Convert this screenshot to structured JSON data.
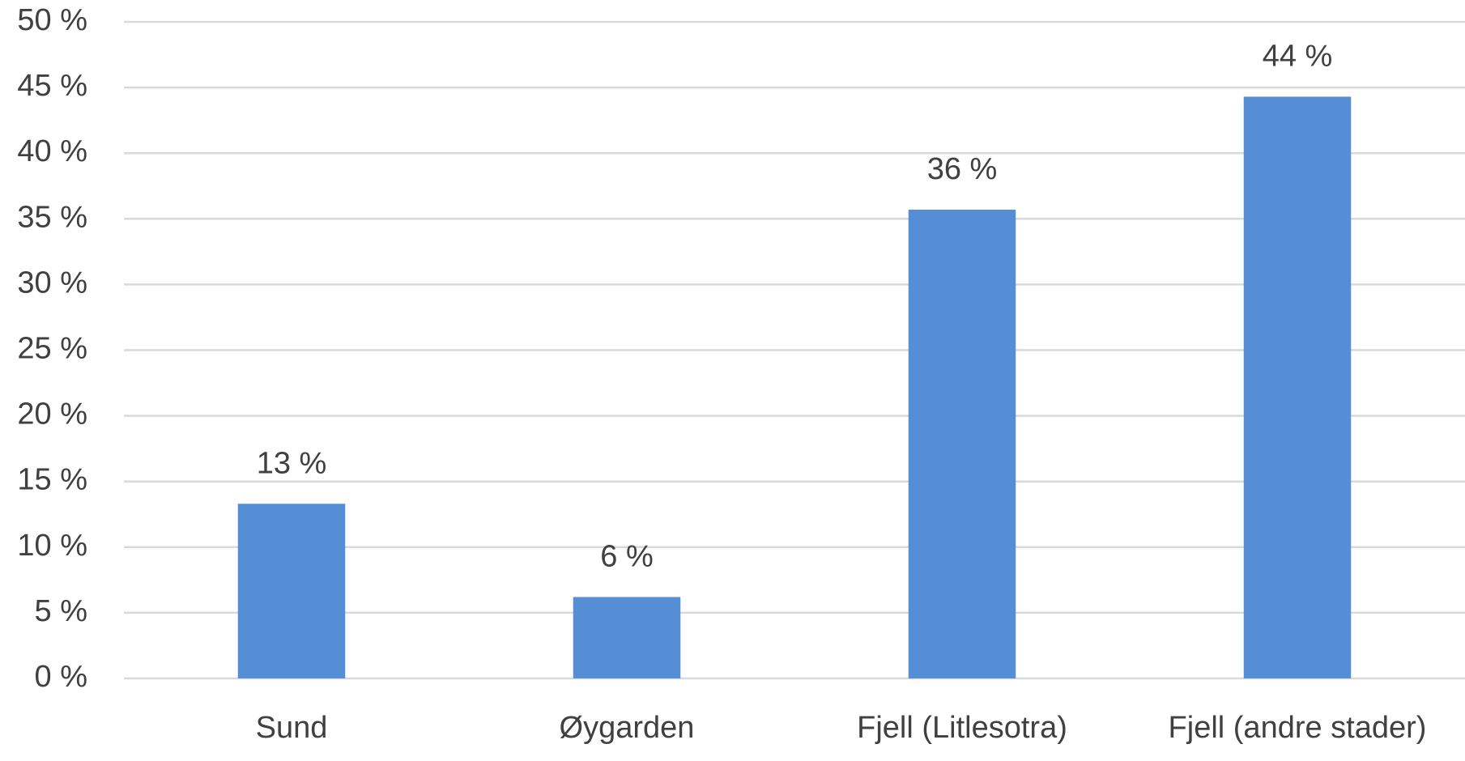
{
  "chart_data": {
    "type": "bar",
    "categories": [
      "Sund",
      "Øygarden",
      "Fjell (Litlesotra)",
      "Fjell (andre stader)"
    ],
    "values": [
      13.3,
      6.2,
      35.7,
      44.3
    ],
    "value_labels": [
      "13 %",
      "6 %",
      "36 %",
      "44 %"
    ],
    "color": "#558ed5",
    "ylim": [
      0,
      50
    ],
    "yticks": [
      {
        "value": 0,
        "label": "0 %"
      },
      {
        "value": 5,
        "label": "5 %"
      },
      {
        "value": 10,
        "label": "10 %"
      },
      {
        "value": 15,
        "label": "15 %"
      },
      {
        "value": 20,
        "label": "20 %"
      },
      {
        "value": 25,
        "label": "25 %"
      },
      {
        "value": 30,
        "label": "30 %"
      },
      {
        "value": 35,
        "label": "35 %"
      },
      {
        "value": 40,
        "label": "40 %"
      },
      {
        "value": 45,
        "label": "45 %"
      },
      {
        "value": 50,
        "label": "50 %"
      }
    ],
    "grid": true
  }
}
